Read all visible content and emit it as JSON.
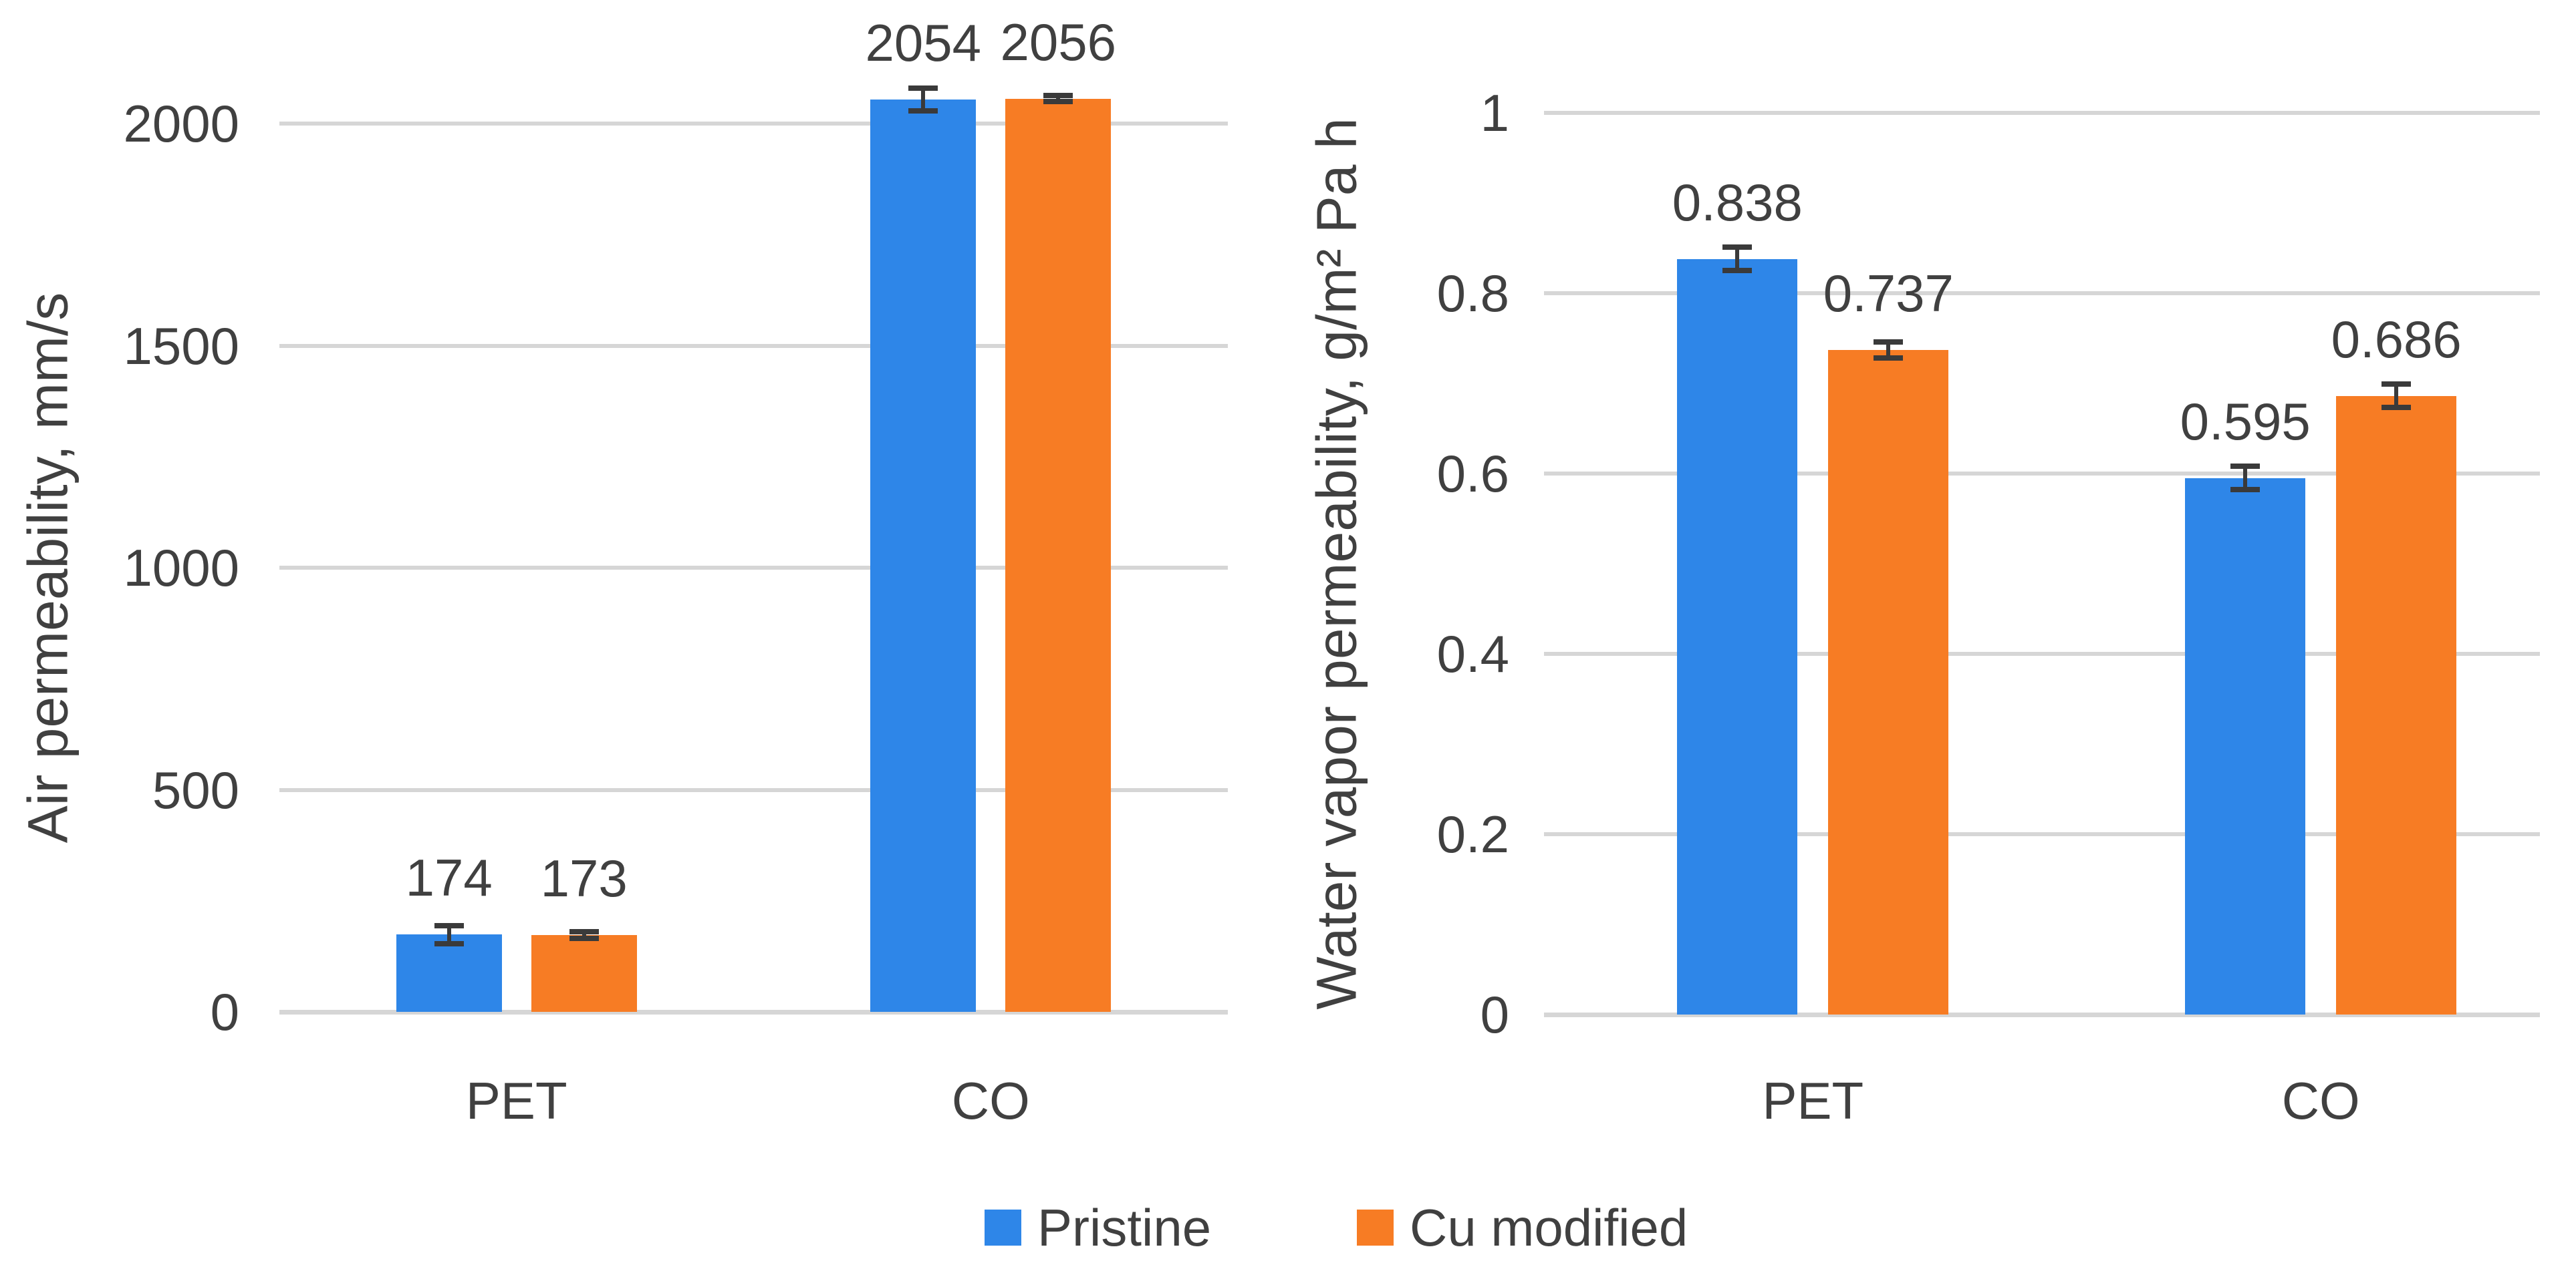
{
  "colors": {
    "pristine": "#2e86e8",
    "cu_modified": "#f77c24",
    "grid": "#d6d6d6",
    "text": "#404040",
    "error_bar": "#3a3a3a",
    "background": "#ffffff"
  },
  "legend": {
    "items": [
      {
        "label": "Pristine",
        "color": "#2e86e8"
      },
      {
        "label": "Cu modified",
        "color": "#f77c24"
      }
    ],
    "position": "bottom-center"
  },
  "chart_data": [
    {
      "type": "bar",
      "title": "",
      "xlabel": "",
      "ylabel": "Air permeability, mm/s",
      "categories": [
        "PET",
        "CO"
      ],
      "series": [
        {
          "name": "Pristine",
          "color": "#2e86e8",
          "values": [
            174,
            2054
          ],
          "labels": [
            "174",
            "2054"
          ],
          "errors": [
            20,
            25
          ]
        },
        {
          "name": "Cu modified",
          "color": "#f77c24",
          "values": [
            173,
            2056
          ],
          "labels": [
            "173",
            "2056"
          ],
          "errors": [
            7,
            7
          ]
        }
      ],
      "ylim": [
        0,
        2000
      ],
      "yticks": [
        {
          "value": 0,
          "label": "0"
        },
        {
          "value": 500,
          "label": "500"
        },
        {
          "value": 1000,
          "label": "1000"
        },
        {
          "value": 1500,
          "label": "1500"
        },
        {
          "value": 2000,
          "label": "2000"
        }
      ],
      "grid": true,
      "error_bars": true,
      "legend_position": "bottom-shared"
    },
    {
      "type": "bar",
      "title": "",
      "xlabel": "",
      "ylabel": "Water vapor permeability, g/m² Pa h",
      "categories": [
        "PET",
        "CO"
      ],
      "series": [
        {
          "name": "Pristine",
          "color": "#2e86e8",
          "values": [
            0.838,
            0.595
          ],
          "labels": [
            "0.838",
            "0.595"
          ],
          "errors": [
            0.013,
            0.013
          ]
        },
        {
          "name": "Cu modified",
          "color": "#f77c24",
          "values": [
            0.737,
            0.686
          ],
          "labels": [
            "0.737",
            "0.686"
          ],
          "errors": [
            0.009,
            0.013
          ]
        }
      ],
      "ylim": [
        0,
        1
      ],
      "yticks": [
        {
          "value": 0,
          "label": "0"
        },
        {
          "value": 0.2,
          "label": "0.2"
        },
        {
          "value": 0.4,
          "label": "0.4"
        },
        {
          "value": 0.6,
          "label": "0.6"
        },
        {
          "value": 0.8,
          "label": "0.8"
        },
        {
          "value": 1,
          "label": "1"
        }
      ],
      "grid": true,
      "error_bars": true,
      "legend_position": "bottom-shared"
    }
  ]
}
